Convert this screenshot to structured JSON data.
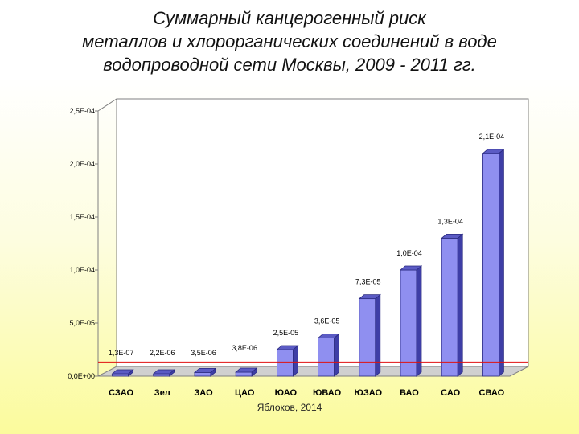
{
  "title_lines": [
    "Суммарный канцерогенный риск",
    "металлов и хлорорганических соединений в воде",
    "водопроводной сети Москвы, 2009 - 2011 гг."
  ],
  "credit": "Яблоков, 2014",
  "chart_data": {
    "type": "bar",
    "title": "Суммарный канцерогенный риск металлов и хлорорганических соединений в воде водопроводной сети Москвы, 2009 - 2011 гг.",
    "categories": [
      "СЗАО",
      "Зел",
      "ЗАО",
      "ЦАО",
      "ЮАО",
      "ЮВАО",
      "ЮЗАО",
      "ВАО",
      "САО",
      "СВАО"
    ],
    "values": [
      1.3e-07,
      2.2e-06,
      3.5e-06,
      3.8e-06,
      2.5e-05,
      3.6e-05,
      7.3e-05,
      0.0001,
      0.00013,
      0.00021
    ],
    "value_labels": [
      "1,3E-07",
      "2,2E-06",
      "3,5E-06",
      "3,8E-06",
      "2,5E-05",
      "3,6E-05",
      "7,3E-05",
      "1,0E-04",
      "1,3E-04",
      "2,1E-04"
    ],
    "yticks": [
      0,
      5e-05,
      0.0001,
      0.00015,
      0.0002,
      0.00025
    ],
    "ytick_labels": [
      "0,0E+00",
      "5,0E-05",
      "1,0E-04",
      "1,5E-04",
      "2,0E-04",
      "2,5E-04"
    ],
    "ylim": [
      0,
      0.00025
    ],
    "reference_line": 1.3e-05,
    "grid": false,
    "legend": "none",
    "colors": {
      "bar_front": "#8f8ff0",
      "bar_side": "#3e3ea6",
      "bar_top": "#5b5bc4",
      "reference_line": "#e01010",
      "plot_bg": "#ffffff"
    }
  }
}
